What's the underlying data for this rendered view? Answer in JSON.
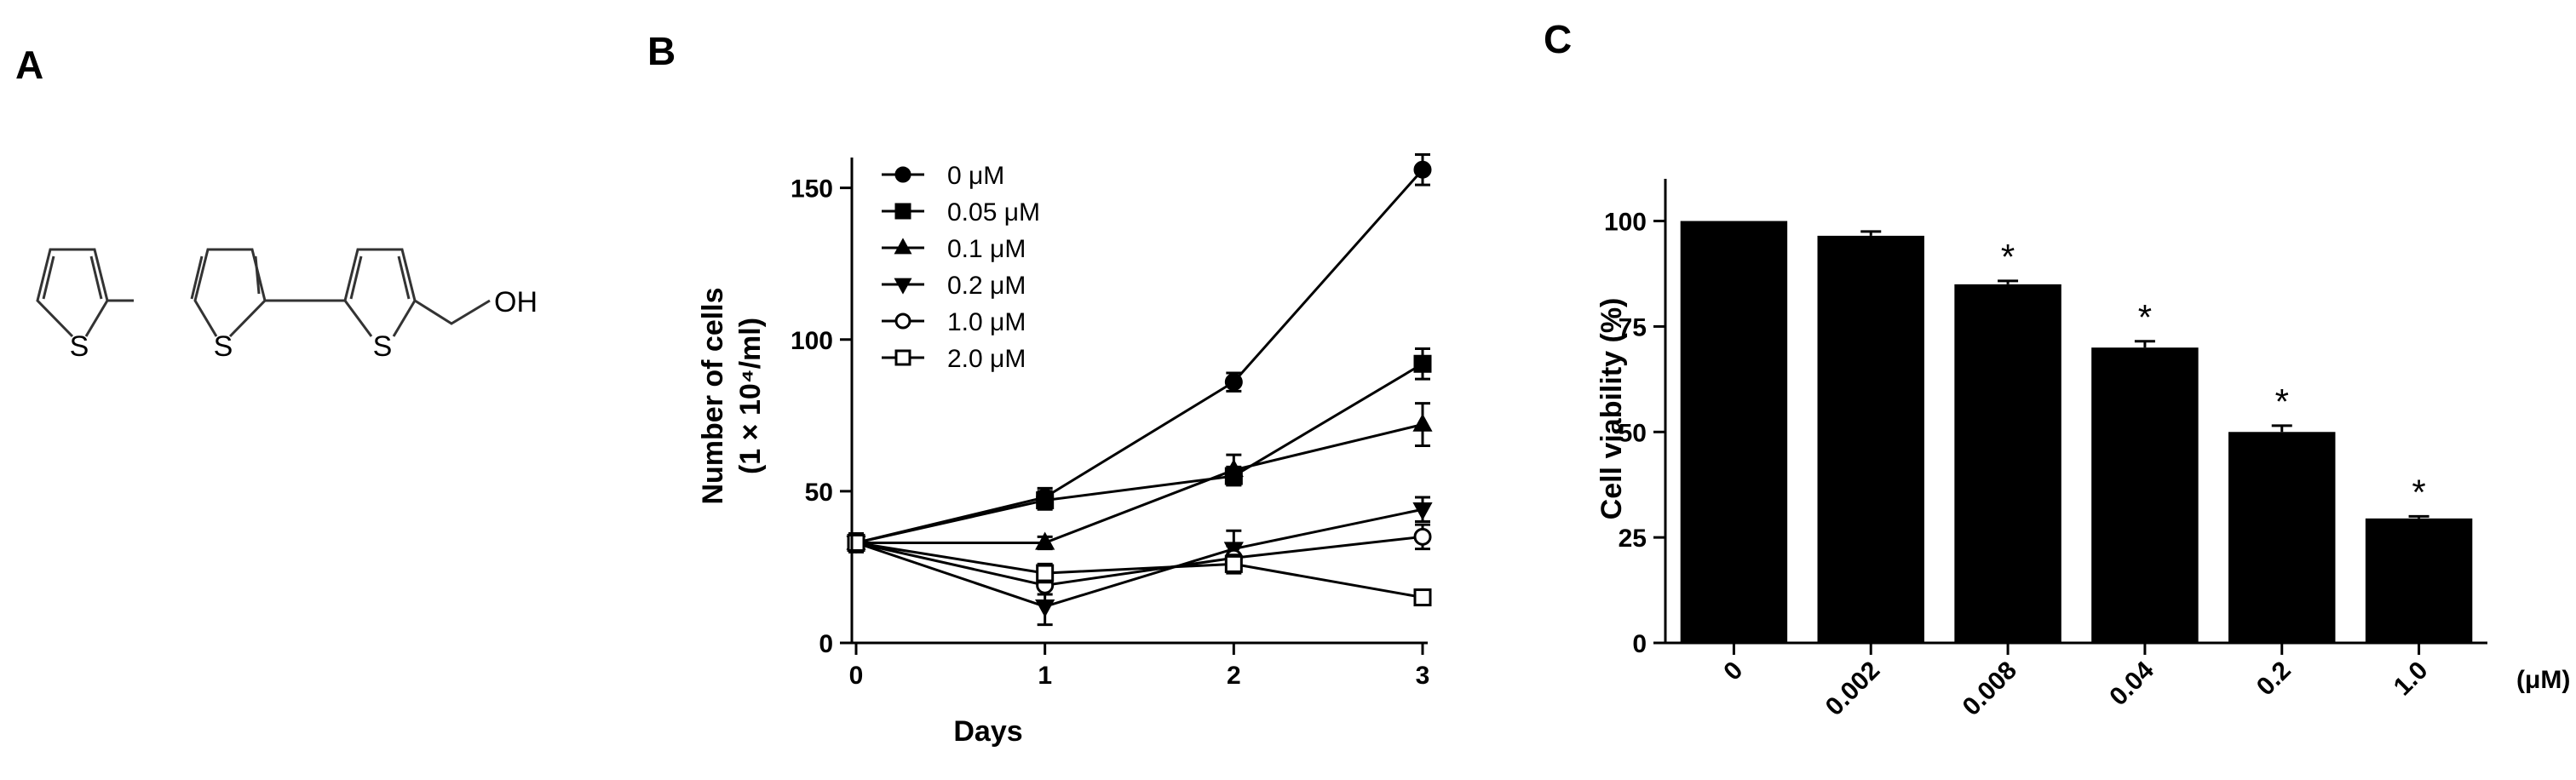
{
  "panels": {
    "a": {
      "letter": "A",
      "structure": {
        "atoms": [
          "S",
          "S",
          "S"
        ],
        "group": "OH"
      }
    },
    "b": {
      "letter": "B"
    },
    "c": {
      "letter": "C"
    }
  },
  "chart_data": [
    {
      "type": "line",
      "panel": "B",
      "title": "",
      "xlabel": "Days",
      "ylabel_line1": "Number of cells",
      "ylabel_line2": "(1 × 10⁴/ml)",
      "x": [
        0,
        1,
        2,
        3
      ],
      "xticks": [
        "0",
        "1",
        "2",
        "3"
      ],
      "yticks": [
        "0",
        "50",
        "100",
        "150"
      ],
      "xlim": [
        0,
        3
      ],
      "ylim": [
        0,
        160
      ],
      "legend_position": "top-left",
      "series": [
        {
          "name": "0 μM",
          "marker": "circle-filled",
          "values": [
            33,
            48,
            86,
            156
          ],
          "errors": [
            3,
            3,
            3,
            5
          ]
        },
        {
          "name": "0.05 μM",
          "marker": "square-filled",
          "values": [
            33,
            47,
            55,
            92
          ],
          "errors": [
            3,
            3,
            3,
            5
          ]
        },
        {
          "name": "0.1 μM",
          "marker": "triangle-up-filled",
          "values": [
            33,
            33,
            57,
            72
          ],
          "errors": [
            3,
            2,
            5,
            7
          ]
        },
        {
          "name": "0.2 μM",
          "marker": "triangle-down-filled",
          "values": [
            33,
            12,
            31,
            44
          ],
          "errors": [
            3,
            6,
            6,
            4
          ]
        },
        {
          "name": "1.0 μM",
          "marker": "circle-open",
          "values": [
            33,
            19,
            28,
            35
          ],
          "errors": [
            3,
            3,
            4,
            4
          ]
        },
        {
          "name": "2.0 μM",
          "marker": "square-open",
          "values": [
            33,
            23,
            26,
            15
          ],
          "errors": [
            3,
            3,
            3,
            2
          ]
        }
      ]
    },
    {
      "type": "bar",
      "panel": "C",
      "title": "",
      "xlabel": "",
      "xunit": "(μM)",
      "ylabel": "Cell viability (%)",
      "categories": [
        "0",
        "0.002",
        "0.008",
        "0.04",
        "0.2",
        "1.0"
      ],
      "values": [
        100,
        96.5,
        85,
        70,
        50,
        29.5
      ],
      "errors": [
        0,
        1,
        0.8,
        1.5,
        1.5,
        0.5
      ],
      "significant": [
        false,
        false,
        true,
        true,
        true,
        true
      ],
      "significance_mark": "*",
      "yticks": [
        "0",
        "25",
        "50",
        "75",
        "100"
      ],
      "ylim": [
        0,
        110
      ]
    }
  ]
}
